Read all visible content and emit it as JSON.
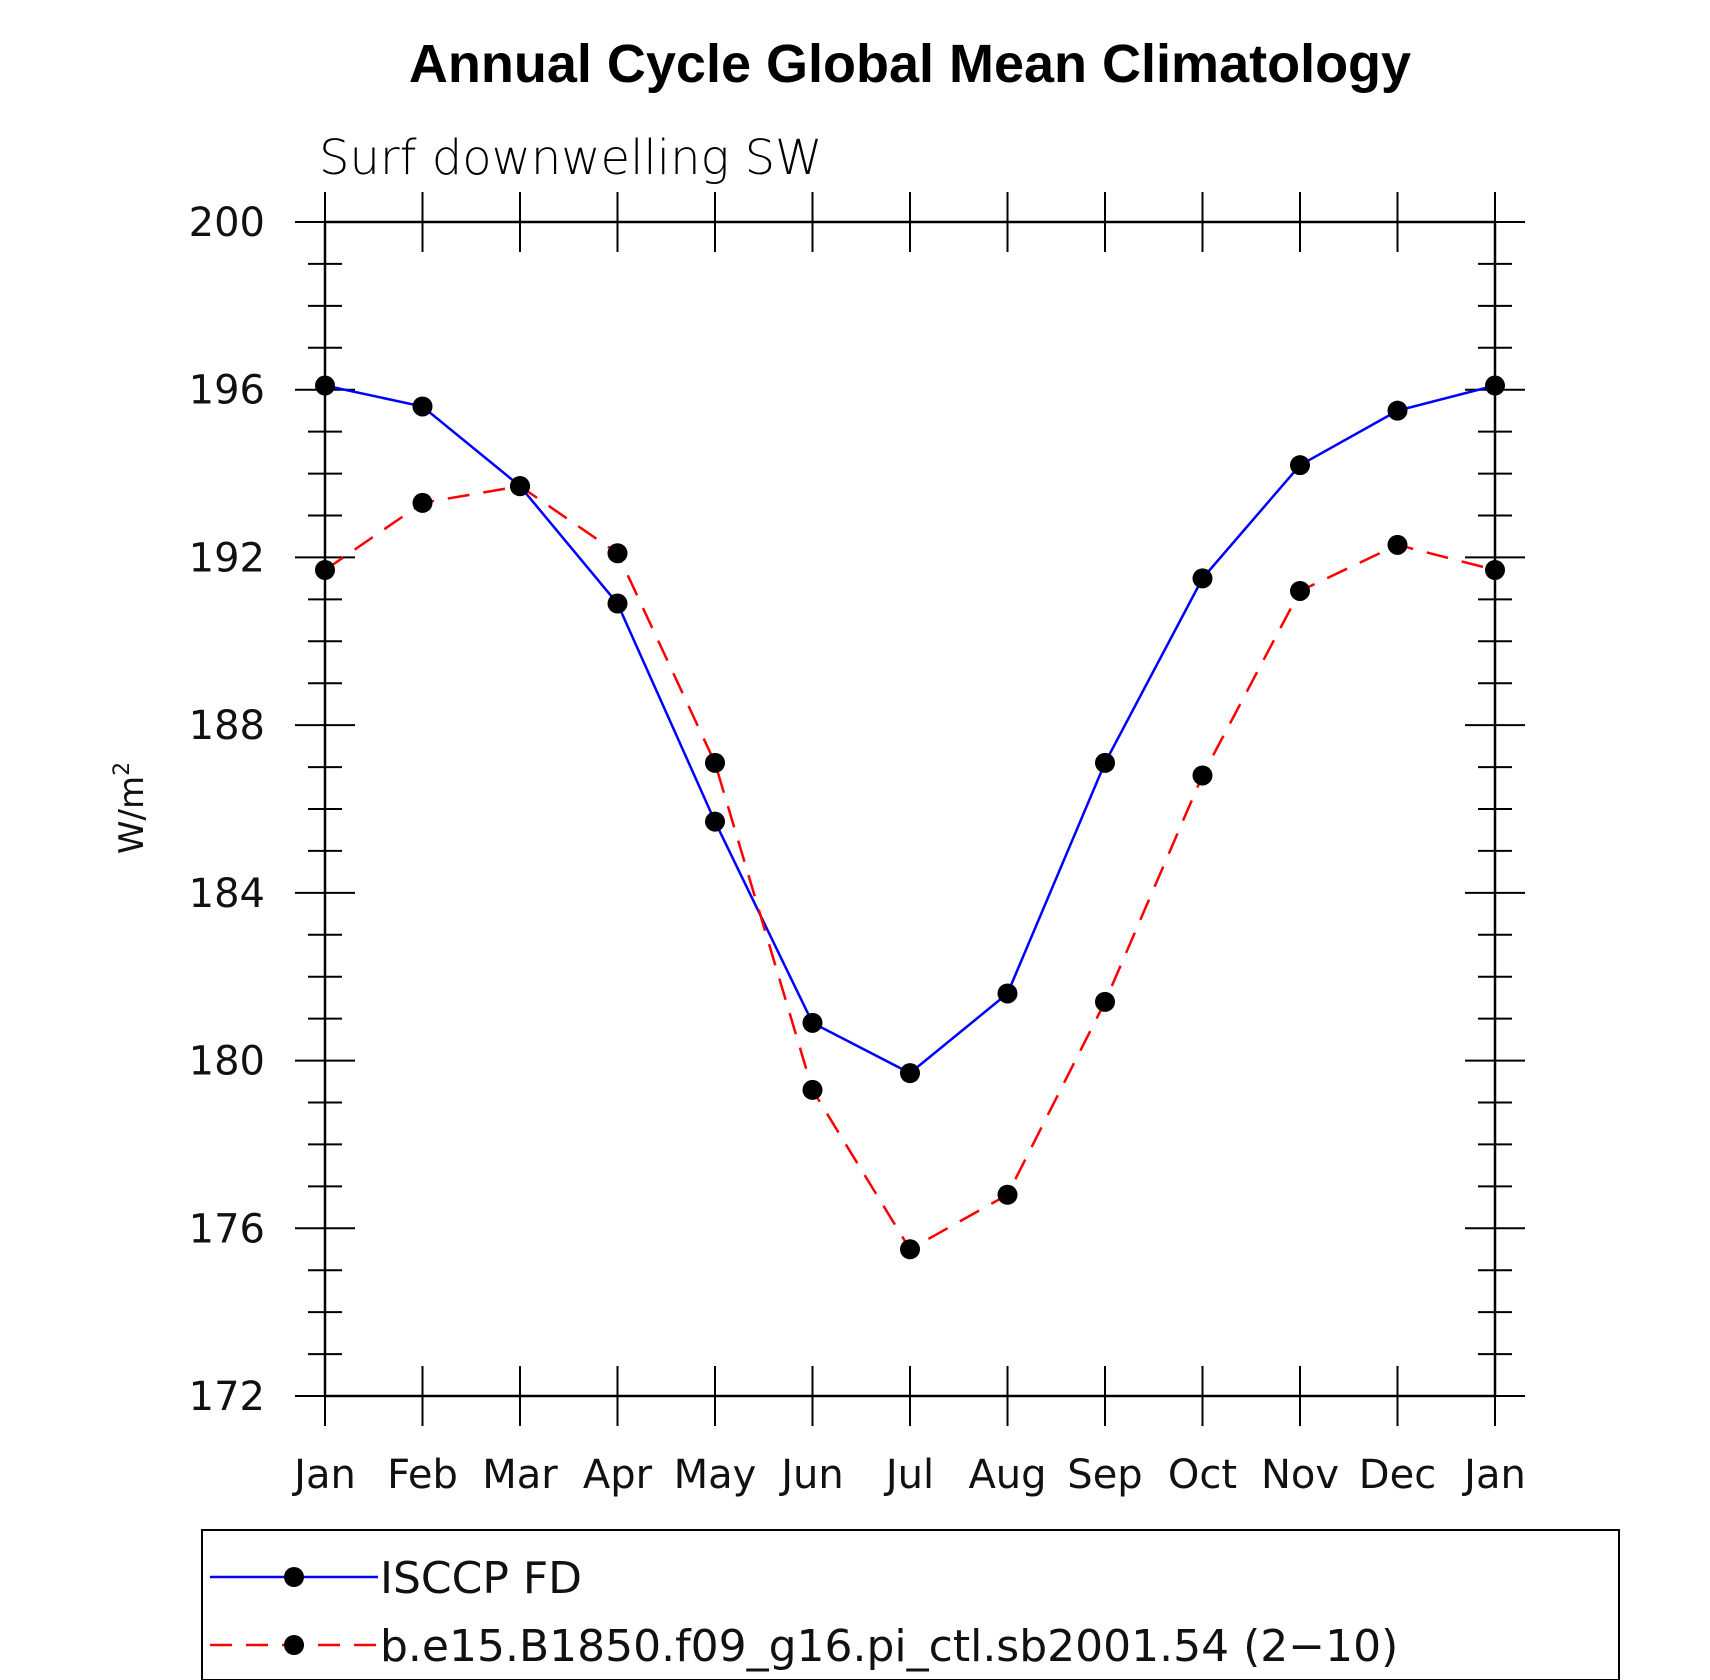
{
  "chart_data": {
    "type": "line",
    "title": "Annual Cycle Global Mean Climatology",
    "subtitle": "Surf downwelling SW",
    "ylabel": "W/m",
    "ylabel_superscript": "2",
    "ylim": [
      172,
      200
    ],
    "yticks": [
      "200",
      "196",
      "192",
      "188",
      "184",
      "180",
      "176",
      "172"
    ],
    "categories": [
      "Jan",
      "Feb",
      "Mar",
      "Apr",
      "May",
      "Jun",
      "Jul",
      "Aug",
      "Sep",
      "Oct",
      "Nov",
      "Dec",
      "Jan"
    ],
    "grid": false,
    "legend_position": "bottom",
    "series": [
      {
        "name": "ISCCP FD",
        "color": "#0000ff",
        "dash": "solid",
        "values": [
          196.1,
          195.6,
          193.7,
          190.9,
          185.7,
          180.9,
          179.7,
          181.6,
          187.1,
          191.5,
          194.2,
          195.5,
          196.1
        ]
      },
      {
        "name": "b.e15.B1850.f09_g16.pi_ctl.sb2001.54 (2−10)",
        "color": "#ff0000",
        "dash": "dashed",
        "values": [
          191.7,
          193.3,
          193.7,
          192.1,
          187.1,
          179.3,
          175.5,
          176.8,
          181.4,
          186.8,
          191.2,
          192.3,
          191.7
        ]
      }
    ]
  }
}
